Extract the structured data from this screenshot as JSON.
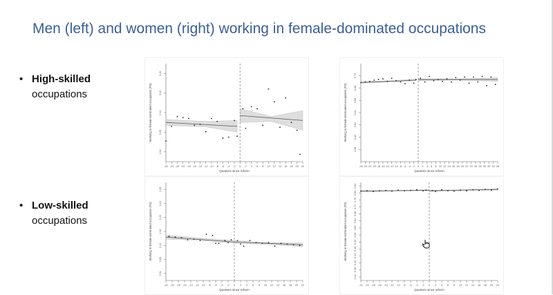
{
  "slide": {
    "title": "Men (left) and women (right) working in female-dominated occupations"
  },
  "bullets": [
    {
      "bold": "High-skilled",
      "rest": "occupations"
    },
    {
      "bold": "Low-skilled",
      "rest": "occupations"
    }
  ],
  "icons": {
    "bullet": "•",
    "cursor": "hand-pointer-icon"
  },
  "colors": {
    "title": "#3b5f95",
    "band": "#d9d9d9",
    "line": "#555555",
    "points": "#222222",
    "reform_line": "#888888"
  },
  "chart_data": [
    {
      "type": "scatter",
      "panel": "men-high-skilled",
      "xlabel": "Quarters since reform",
      "ylabel": "Working in female-dominated occupation (FS)",
      "xlim": [
        -26,
        22
      ],
      "ylim": [
        0.02,
        0.22
      ],
      "reform_x": 0,
      "xticks": [
        -26,
        -24,
        -22,
        -20,
        -18,
        -16,
        -14,
        -12,
        -10,
        -8,
        -6,
        -4,
        -2,
        0,
        2,
        4,
        6,
        8,
        10,
        12,
        14,
        16,
        18,
        20,
        22
      ],
      "yticks": [
        0.04,
        0.08,
        0.12,
        0.16,
        0.2
      ],
      "pre": {
        "points": [
          [
            -26,
            0.062
          ],
          [
            -24,
            0.092
          ],
          [
            -22,
            0.112
          ],
          [
            -20,
            0.11
          ],
          [
            -18,
            0.108
          ],
          [
            -16,
            0.094
          ],
          [
            -14,
            0.096
          ],
          [
            -12,
            0.081
          ],
          [
            -10,
            0.108
          ],
          [
            -8,
            0.102
          ],
          [
            -6,
            0.068
          ],
          [
            -4,
            0.07
          ],
          [
            -2,
            0.104
          ],
          [
            -1,
            0.072
          ]
        ],
        "fit": [
          [
            -26,
            0.1
          ],
          [
            -1,
            0.092
          ]
        ],
        "band_lo": [
          [
            -26,
            0.094
          ],
          [
            -12,
            0.091
          ],
          [
            -1,
            0.08
          ]
        ],
        "band_hi": [
          [
            -26,
            0.106
          ],
          [
            -12,
            0.102
          ],
          [
            -1,
            0.104
          ]
        ]
      },
      "post": {
        "points": [
          [
            1,
            0.128
          ],
          [
            2,
            0.088
          ],
          [
            4,
            0.132
          ],
          [
            6,
            0.128
          ],
          [
            8,
            0.094
          ],
          [
            10,
            0.168
          ],
          [
            12,
            0.142
          ],
          [
            14,
            0.09
          ],
          [
            16,
            0.15
          ],
          [
            18,
            0.1
          ],
          [
            20,
            0.084
          ],
          [
            21,
            0.035
          ]
        ],
        "fit": [
          [
            0,
            0.114
          ],
          [
            22,
            0.104
          ]
        ],
        "band_lo": [
          [
            0,
            0.1
          ],
          [
            11,
            0.102
          ],
          [
            22,
            0.084
          ]
        ],
        "band_hi": [
          [
            0,
            0.128
          ],
          [
            11,
            0.112
          ],
          [
            22,
            0.124
          ]
        ]
      }
    },
    {
      "type": "scatter",
      "panel": "women-high-skilled",
      "xlabel": "Quarters since reform",
      "ylabel": "Working in female-dominated occupation (FS)",
      "xlim": [
        -26,
        36
      ],
      "ylim": [
        0.56,
        0.72
      ],
      "reform_x": 0,
      "xticks": [
        -26,
        -24,
        -22,
        -20,
        -18,
        -16,
        -14,
        -12,
        -10,
        -8,
        -6,
        -4,
        -2,
        0,
        2,
        4,
        6,
        8,
        10,
        12,
        14,
        16,
        18,
        20,
        22,
        24,
        26,
        28,
        30,
        32,
        34,
        36
      ],
      "yticks": [
        0.58,
        0.6,
        0.62,
        0.64,
        0.66,
        0.68,
        0.7
      ],
      "pre": {
        "points": [
          [
            -26,
            0.689
          ],
          [
            -24,
            0.69
          ],
          [
            -22,
            0.691
          ],
          [
            -20,
            0.693
          ],
          [
            -18,
            0.694
          ],
          [
            -16,
            0.695
          ],
          [
            -14,
            0.691
          ],
          [
            -12,
            0.696
          ],
          [
            -10,
            0.692
          ],
          [
            -8,
            0.69
          ],
          [
            -6,
            0.687
          ],
          [
            -4,
            0.693
          ],
          [
            -2,
            0.688
          ],
          [
            -1,
            0.694
          ]
        ],
        "fit": [
          [
            -26,
            0.689
          ],
          [
            -1,
            0.693
          ]
        ],
        "band_lo": [
          [
            -26,
            0.688
          ],
          [
            -12,
            0.69
          ],
          [
            -1,
            0.692
          ]
        ],
        "band_hi": [
          [
            -26,
            0.691
          ],
          [
            -12,
            0.692
          ],
          [
            -1,
            0.695
          ]
        ]
      },
      "post": {
        "points": [
          [
            1,
            0.696
          ],
          [
            3,
            0.69
          ],
          [
            5,
            0.699
          ],
          [
            7,
            0.692
          ],
          [
            9,
            0.694
          ],
          [
            11,
            0.691
          ],
          [
            13,
            0.695
          ],
          [
            15,
            0.69
          ],
          [
            17,
            0.697
          ],
          [
            19,
            0.693
          ],
          [
            21,
            0.698
          ],
          [
            23,
            0.688
          ],
          [
            25,
            0.698
          ],
          [
            27,
            0.69
          ],
          [
            29,
            0.699
          ],
          [
            31,
            0.684
          ],
          [
            33,
            0.698
          ],
          [
            35,
            0.686
          ]
        ],
        "fit": [
          [
            0,
            0.694
          ],
          [
            36,
            0.694
          ]
        ],
        "band_lo": [
          [
            0,
            0.692
          ],
          [
            18,
            0.693
          ],
          [
            36,
            0.691
          ]
        ],
        "band_hi": [
          [
            0,
            0.695
          ],
          [
            18,
            0.695
          ],
          [
            36,
            0.697
          ]
        ]
      }
    },
    {
      "type": "scatter",
      "panel": "men-low-skilled",
      "xlabel": "Quarters since reform",
      "ylabel": "Working in female-dominated occupation (FS)",
      "xlim": [
        -22,
        22
      ],
      "ylim": [
        0.02,
        0.3
      ],
      "reform_x": 0,
      "xticks": [
        -22,
        -20,
        -18,
        -16,
        -14,
        -12,
        -10,
        -8,
        -6,
        -4,
        -2,
        0,
        2,
        4,
        6,
        8,
        10,
        12,
        14,
        16,
        18,
        20,
        22
      ],
      "yticks": [
        0.04,
        0.08,
        0.12,
        0.16,
        0.2,
        0.24,
        0.28
      ],
      "pre": {
        "points": [
          [
            -21,
            0.146
          ],
          [
            -19,
            0.144
          ],
          [
            -17,
            0.142
          ],
          [
            -15,
            0.136
          ],
          [
            -13,
            0.138
          ],
          [
            -11,
            0.134
          ],
          [
            -9,
            0.152
          ],
          [
            -7,
            0.148
          ],
          [
            -6,
            0.126
          ],
          [
            -5,
            0.126
          ],
          [
            -3,
            0.134
          ],
          [
            -2,
            0.128
          ],
          [
            -1,
            0.136
          ]
        ],
        "fit": [
          [
            -22,
            0.144
          ],
          [
            0,
            0.13
          ]
        ],
        "band_lo": [
          [
            -22,
            0.138
          ],
          [
            -11,
            0.135
          ],
          [
            0,
            0.126
          ]
        ],
        "band_hi": [
          [
            -22,
            0.15
          ],
          [
            -11,
            0.141
          ],
          [
            0,
            0.134
          ]
        ]
      },
      "post": {
        "points": [
          [
            1,
            0.134
          ],
          [
            2,
            0.124
          ],
          [
            3,
            0.118
          ],
          [
            5,
            0.134
          ],
          [
            7,
            0.128
          ],
          [
            9,
            0.126
          ],
          [
            11,
            0.128
          ],
          [
            13,
            0.118
          ],
          [
            15,
            0.126
          ],
          [
            17,
            0.124
          ],
          [
            19,
            0.122
          ],
          [
            21,
            0.12
          ]
        ],
        "fit": [
          [
            0,
            0.13
          ],
          [
            22,
            0.122
          ]
        ],
        "band_lo": [
          [
            0,
            0.126
          ],
          [
            11,
            0.123
          ],
          [
            22,
            0.116
          ]
        ],
        "band_hi": [
          [
            0,
            0.134
          ],
          [
            11,
            0.128
          ],
          [
            22,
            0.127
          ]
        ]
      }
    },
    {
      "type": "scatter",
      "panel": "women-low-skilled",
      "xlabel": "Quarters since reform",
      "ylabel": "Working in female-dominated occupation (FS)",
      "xlim": [
        -22,
        22
      ],
      "ylim": [
        0.3,
        0.86
      ],
      "reform_x": 0,
      "xticks": [
        -22,
        -20,
        -18,
        -16,
        -14,
        -12,
        -10,
        -8,
        -6,
        -4,
        -2,
        0,
        2,
        4,
        6,
        8,
        10,
        12,
        14,
        16,
        18,
        20,
        22
      ],
      "yticks": [
        0.32,
        0.36,
        0.4,
        0.44,
        0.48,
        0.52,
        0.56,
        0.6,
        0.64,
        0.68,
        0.72,
        0.76,
        0.8,
        0.84
      ],
      "pre": {
        "points": [
          [
            -22,
            0.81
          ],
          [
            -20,
            0.812
          ],
          [
            -18,
            0.808
          ],
          [
            -16,
            0.812
          ],
          [
            -14,
            0.814
          ],
          [
            -12,
            0.81
          ],
          [
            -10,
            0.816
          ],
          [
            -8,
            0.812
          ],
          [
            -6,
            0.814
          ],
          [
            -4,
            0.818
          ],
          [
            -2,
            0.812
          ],
          [
            -1,
            0.816
          ]
        ],
        "fit": [
          [
            -22,
            0.81
          ],
          [
            0,
            0.815
          ]
        ],
        "band_lo": [
          [
            -22,
            0.807
          ],
          [
            -11,
            0.811
          ],
          [
            0,
            0.812
          ]
        ],
        "band_hi": [
          [
            -22,
            0.813
          ],
          [
            -11,
            0.814
          ],
          [
            0,
            0.818
          ]
        ]
      },
      "post": {
        "points": [
          [
            1,
            0.814
          ],
          [
            2,
            0.808
          ],
          [
            4,
            0.818
          ],
          [
            6,
            0.812
          ],
          [
            8,
            0.81
          ],
          [
            10,
            0.816
          ],
          [
            12,
            0.812
          ],
          [
            14,
            0.818
          ],
          [
            16,
            0.814
          ],
          [
            18,
            0.82
          ],
          [
            20,
            0.816
          ],
          [
            22,
            0.822
          ]
        ],
        "fit": [
          [
            0,
            0.812
          ],
          [
            22,
            0.82
          ]
        ],
        "band_lo": [
          [
            0,
            0.808
          ],
          [
            11,
            0.814
          ],
          [
            22,
            0.816
          ]
        ],
        "band_hi": [
          [
            0,
            0.815
          ],
          [
            11,
            0.818
          ],
          [
            22,
            0.824
          ]
        ]
      }
    }
  ]
}
